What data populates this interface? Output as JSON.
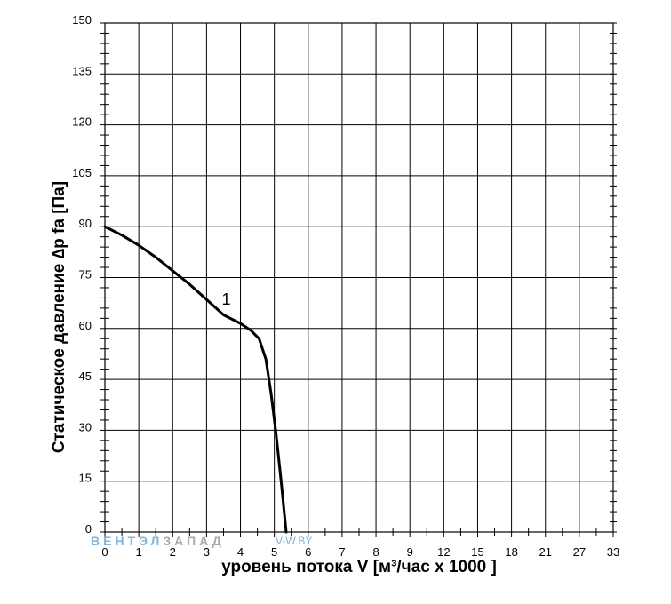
{
  "chart_data": {
    "type": "line",
    "title": "",
    "xlabel": "уровень потока  V [м³/час x 1000 ]",
    "ylabel": "Статическое давление  ∆p fa [Па]",
    "x_ticks": [
      0,
      1,
      2,
      3,
      4,
      5,
      6,
      7,
      8,
      9,
      12,
      15,
      18,
      21,
      27,
      33
    ],
    "x_tick_labels": [
      "0",
      "1",
      "2",
      "3",
      "4",
      "5",
      "6",
      "7",
      "8",
      "9",
      "12",
      "15",
      "18",
      "21",
      "27",
      "33"
    ],
    "y_ticks": [
      0,
      15,
      30,
      45,
      60,
      75,
      90,
      105,
      120,
      135,
      150
    ],
    "ylim": [
      0,
      150
    ],
    "grid": true,
    "series": [
      {
        "name": "1",
        "color": "#000000",
        "points": [
          [
            0,
            90
          ],
          [
            0.5,
            87.5
          ],
          [
            1,
            84.5
          ],
          [
            1.5,
            81
          ],
          [
            2,
            77
          ],
          [
            2.5,
            73
          ],
          [
            3,
            68.5
          ],
          [
            3.5,
            64
          ],
          [
            4,
            61.5
          ],
          [
            4.3,
            59.5
          ],
          [
            4.55,
            57
          ],
          [
            4.75,
            51
          ],
          [
            4.9,
            41
          ],
          [
            5.05,
            29
          ],
          [
            5.2,
            15
          ],
          [
            5.35,
            0
          ]
        ]
      }
    ]
  },
  "watermark": {
    "part1": "ВЕНТЭЛ",
    "part2": "ЗАПАД",
    "part3": "V-W.BY",
    "color1": "#7fb6dd",
    "color2": "#a9a9a9"
  }
}
